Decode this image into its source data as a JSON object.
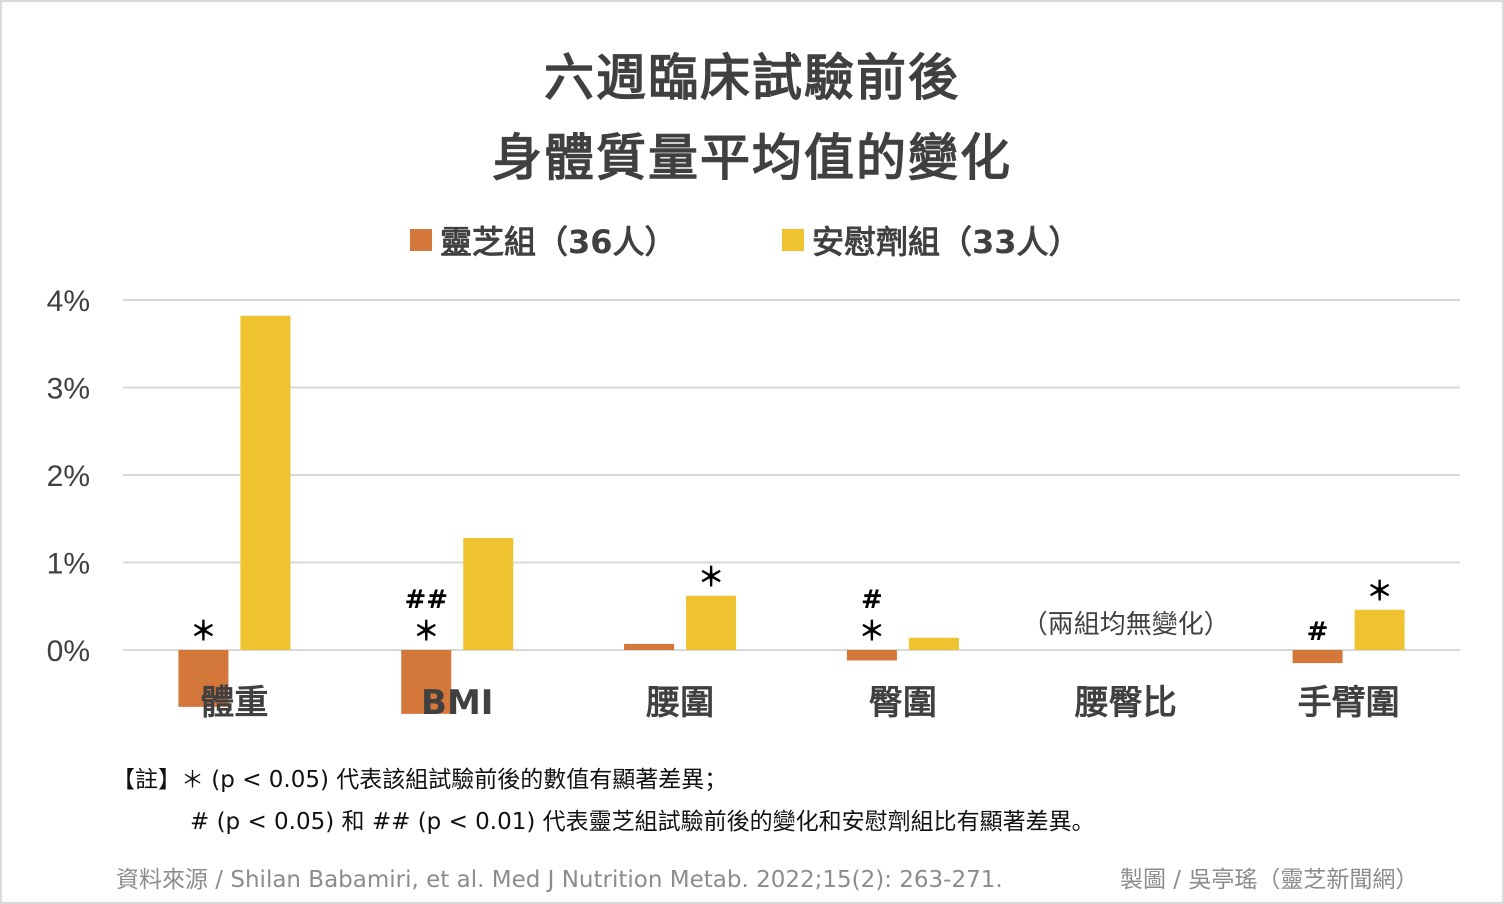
{
  "chart_data": {
    "type": "bar",
    "title": [
      "六週臨床試驗前後",
      "身體質量平均值的變化"
    ],
    "categories": [
      "體重",
      "BMI",
      "腰圍",
      "臀圍",
      "腰臀比",
      "手臂圍"
    ],
    "series": [
      {
        "name": "靈芝組（36人）",
        "color": "#d4773a",
        "values": [
          -0.65,
          -0.73,
          0.07,
          -0.12,
          0,
          -0.15
        ]
      },
      {
        "name": "安慰劑組（33人）",
        "color": "#efc22f",
        "values": [
          3.82,
          1.28,
          0.62,
          0.14,
          0,
          0.46
        ]
      }
    ],
    "ylim": [
      -0.8,
      4
    ],
    "yticks": [
      0,
      1,
      2,
      3,
      4
    ],
    "ytick_labels": [
      "0%",
      "1%",
      "2%",
      "3%",
      "4%"
    ],
    "grid": true,
    "legend_position": "top",
    "markers": [
      {
        "category": 0,
        "series": 0,
        "text": "＊"
      },
      {
        "category": 1,
        "series": 0,
        "text": "＊"
      },
      {
        "category": 1,
        "series": 0,
        "text": "##"
      },
      {
        "category": 2,
        "series": 1,
        "text": "＊"
      },
      {
        "category": 3,
        "series": 0,
        "text": "＊"
      },
      {
        "category": 3,
        "series": 0,
        "text": "#"
      },
      {
        "category": 5,
        "series": 0,
        "text": "#"
      },
      {
        "category": 5,
        "series": 1,
        "text": "＊"
      }
    ],
    "annotation": {
      "category": 4,
      "text": "（兩組均無變化）"
    }
  },
  "notes": {
    "line1": "【註】＊ (p < 0.05) 代表該組試驗前後的數值有顯著差異；",
    "line2": "# (p < 0.05) 和 ##  (p < 0.01) 代表靈芝組試驗前後的變化和安慰劑組比有顯著差異。"
  },
  "footer": {
    "source": "資料來源 / Shilan Babamiri, et al. Med J Nutrition Metab. 2022;15(2): 263-271.",
    "credit": "製圖 / 吳亭瑤（靈芝新聞網）"
  }
}
